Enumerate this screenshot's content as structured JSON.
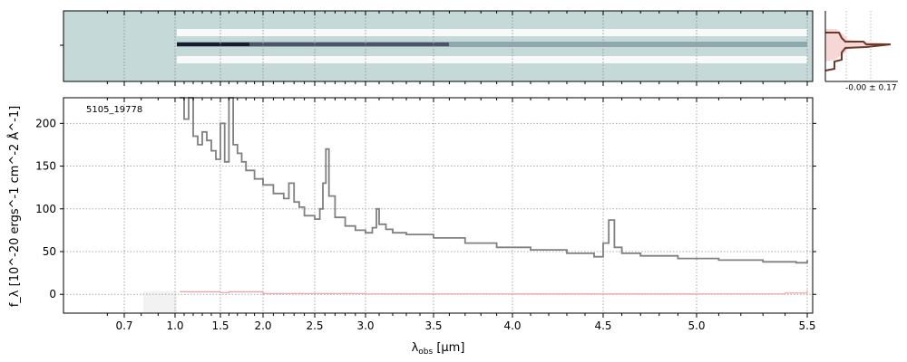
{
  "chart_data": [
    {
      "type": "heatmap",
      "panel": "2d-spectrum",
      "colormap": [
        "#c5d9d8",
        "#ffffff",
        "#1a1a2e"
      ],
      "xaxis_ticks": [
        0.7,
        1.0,
        1.5,
        2.0,
        2.5,
        3.0,
        3.5,
        4.0,
        4.5,
        5.0,
        5.5
      ],
      "grid": true
    },
    {
      "type": "line",
      "panel": "1d-spectrum",
      "label": "5105_19778",
      "xlabel_prefix": "λ",
      "xlabel_sub": "obs",
      "xlabel_unit": "[μm]",
      "ylabel": "f_λ [10^-20 ergs^-1 cm^-2 Å^-1]",
      "ylim": [
        -22,
        230
      ],
      "yticks": [
        0,
        50,
        100,
        150,
        200
      ],
      "xticks": [
        0.7,
        1.0,
        1.5,
        2.0,
        2.5,
        3.0,
        3.5,
        4.0,
        4.5,
        5.0,
        5.5
      ],
      "xticklabels": [
        "0.7",
        "1.0",
        "1.5",
        "2.0",
        "2.5",
        "3.0",
        "3.5",
        "4.0",
        "4.5",
        "5.0",
        "5.5"
      ],
      "grid": true,
      "series": [
        {
          "color": "#808080",
          "x": [
            1.05,
            1.1,
            1.15,
            1.2,
            1.25,
            1.3,
            1.35,
            1.4,
            1.45,
            1.5,
            1.55,
            1.6,
            1.65,
            1.7,
            1.75,
            1.8,
            1.9,
            2.0,
            2.1,
            2.2,
            2.25,
            2.3,
            2.35,
            2.4,
            2.5,
            2.55,
            2.58,
            2.61,
            2.64,
            2.7,
            2.8,
            2.9,
            3.0,
            3.05,
            3.08,
            3.1,
            3.15,
            3.2,
            3.3,
            3.5,
            3.7,
            3.9,
            4.1,
            4.3,
            4.45,
            4.5,
            4.53,
            4.56,
            4.6,
            4.7,
            4.9,
            5.1,
            5.3,
            5.45,
            5.5
          ],
          "y": [
            230,
            205,
            230,
            185,
            175,
            190,
            180,
            168,
            158,
            200,
            155,
            230,
            175,
            165,
            155,
            145,
            135,
            128,
            118,
            112,
            130,
            108,
            102,
            92,
            88,
            100,
            130,
            170,
            115,
            90,
            80,
            75,
            72,
            78,
            100,
            82,
            76,
            72,
            70,
            66,
            60,
            55,
            52,
            48,
            44,
            60,
            87,
            55,
            48,
            45,
            42,
            40,
            38,
            37,
            40
          ]
        },
        {
          "color": "#f0a0a0",
          "x": [
            1.05,
            1.5,
            1.6,
            2.0,
            3.0,
            4.0,
            5.0,
            5.4,
            5.5
          ],
          "y": [
            3,
            2,
            3,
            1,
            0.5,
            0.3,
            0.5,
            1.5,
            5
          ]
        }
      ]
    },
    {
      "type": "area",
      "panel": "profile",
      "annotation": "-0.00 ± 0.17",
      "colors": [
        "#6b3a2a",
        "#f4c4c4"
      ]
    }
  ]
}
